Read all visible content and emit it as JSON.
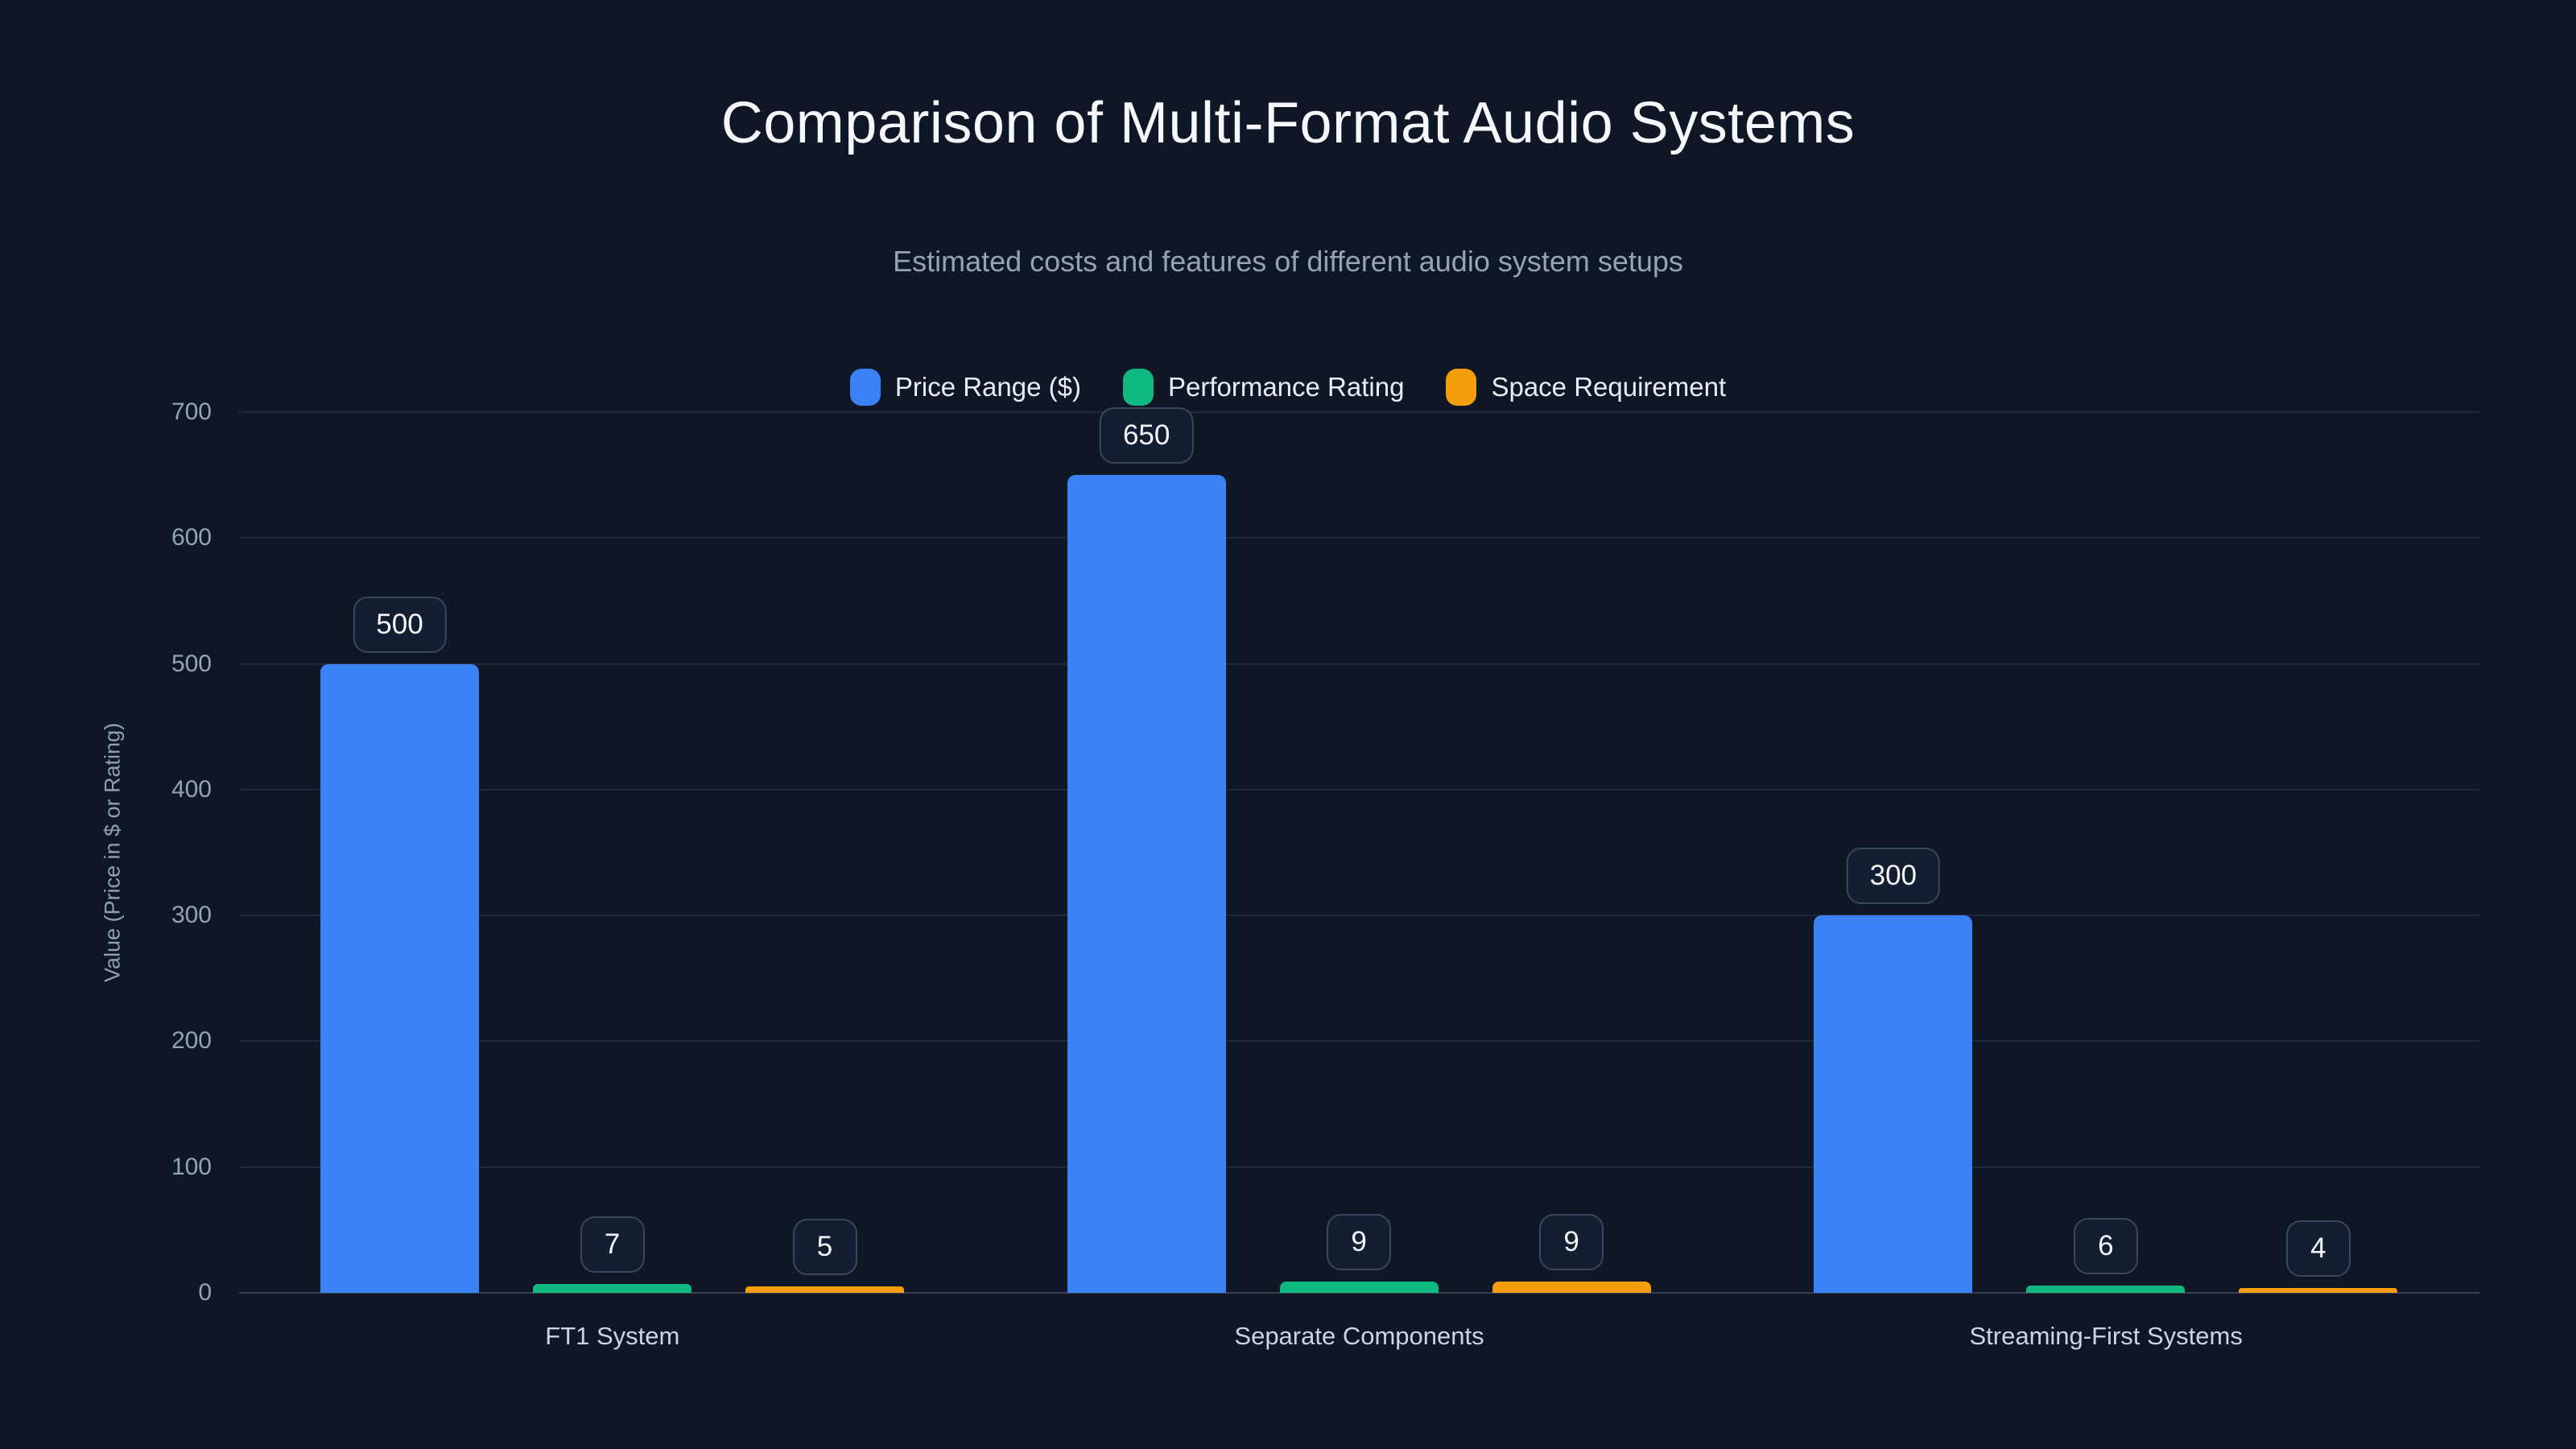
{
  "page": {
    "title": "Comparison of Multi-Format Audio Systems",
    "subtitle": "Estimated costs and features of different audio system setups"
  },
  "theme": {
    "background": "#0f1727",
    "grid_color": "rgba(148,163,184,0.13)",
    "baseline_color": "rgba(148,163,184,0.30)",
    "badge_border": "#3b4759",
    "badge_text": "#f5f7fa",
    "tick_text": "#94a3b8",
    "category_text": "#cbd5e1"
  },
  "chart_data": {
    "type": "bar",
    "categories": [
      "FT1 System",
      "Separate Components",
      "Streaming-First Systems"
    ],
    "series": [
      {
        "name": "Price Range ($)",
        "color": "#3b82f6",
        "values": [
          500,
          650,
          300
        ]
      },
      {
        "name": "Performance Rating",
        "color": "#10b981",
        "values": [
          7,
          9,
          6
        ]
      },
      {
        "name": "Space Requirement",
        "color": "#f59e0b",
        "values": [
          5,
          9,
          4
        ]
      }
    ],
    "title": "Comparison of Multi-Format Audio Systems",
    "subtitle": "Estimated costs and features of different audio system setups",
    "xlabel": "",
    "ylabel": "Value (Price in $ or Rating)",
    "ylim": [
      0,
      700
    ],
    "yticks": [
      0,
      100,
      200,
      300,
      400,
      500,
      600,
      700
    ],
    "grid": true,
    "legend_position": "top-center",
    "value_labels": true
  }
}
